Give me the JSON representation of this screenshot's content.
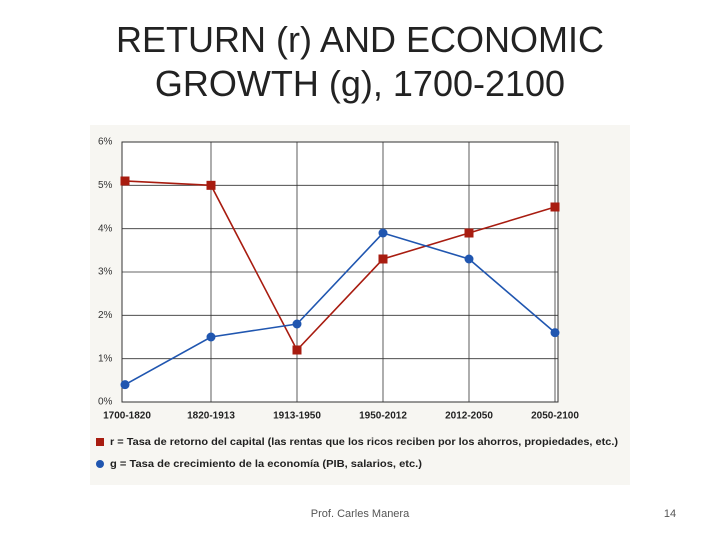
{
  "title": "RETURN (r) AND ECONOMIC GROWTH (g), 1700-2100",
  "footer": "Prof. Carles Manera",
  "page_number": "14",
  "chart_data": {
    "type": "line",
    "categories": [
      "1700-1820",
      "1820-1913",
      "1913-1950",
      "1950-2012",
      "2012-2050",
      "2050-2100"
    ],
    "series": [
      {
        "name": "r = Tasa de retorno del capital (las rentas que los ricos reciben por los ahorros, propiedades, etc.)",
        "color": "#a81c10",
        "marker": "square",
        "values": [
          5.1,
          5.0,
          1.2,
          3.3,
          3.9,
          4.5
        ]
      },
      {
        "name": "g = Tasa de crecimiento de la economía (PIB, salarios, etc.)",
        "color": "#2056b0",
        "marker": "circle",
        "values": [
          0.4,
          1.5,
          1.8,
          3.9,
          3.3,
          1.6
        ]
      }
    ],
    "ylim": [
      0,
      6
    ],
    "yticks": [
      {
        "value": 0,
        "label": "0%"
      },
      {
        "value": 1,
        "label": "1%"
      },
      {
        "value": 2,
        "label": "2%"
      },
      {
        "value": 3,
        "label": "3%"
      },
      {
        "value": 4,
        "label": "4%"
      },
      {
        "value": 5,
        "label": "5%"
      },
      {
        "value": 6,
        "label": "6%"
      }
    ],
    "grid": true
  }
}
